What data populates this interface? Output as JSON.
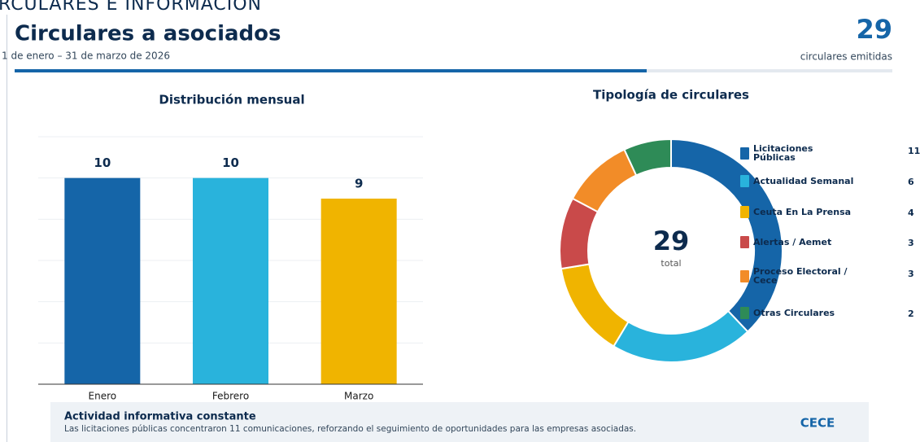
{
  "section": "RCULARES E INFORMACIÓN",
  "header": {
    "title": "Circulares a asociados",
    "subtitle": "1 de enero – 31 de marzo de 2026",
    "total": 29,
    "total_label": "circulares emitidas"
  },
  "chart_data": [
    {
      "type": "bar",
      "title": "Distribución mensual",
      "categories": [
        "Enero",
        "Febrero",
        "Marzo"
      ],
      "values": [
        10,
        10,
        9
      ],
      "colors": [
        "#1565a8",
        "#29b3dc",
        "#f0b400"
      ],
      "ylim": [
        0,
        12
      ],
      "yticks": [
        0,
        2,
        4,
        6,
        8,
        10,
        12
      ],
      "grid": true
    },
    {
      "type": "pie",
      "title": "Tipología de circulares",
      "categories": [
        "Licitaciones Públicas",
        "Actualidad Semanal",
        "Ceuta En La Prensa",
        "Alertas / Aemet",
        "Proceso Electoral / Cece",
        "Otras Circulares"
      ],
      "values": [
        11,
        6,
        4,
        3,
        3,
        2
      ],
      "colors": [
        "#1565a8",
        "#29b3dc",
        "#f0b400",
        "#c94a4a",
        "#f28c28",
        "#2e8b57"
      ],
      "center_value": 29,
      "center_label": "total"
    }
  ],
  "footer": {
    "title": "Actividad informativa constante",
    "text": "Las licitaciones públicas concentraron 11 comunicaciones, reforzando el seguimiento de oportunidades para las empresas asociadas.",
    "brand": "CECE"
  }
}
